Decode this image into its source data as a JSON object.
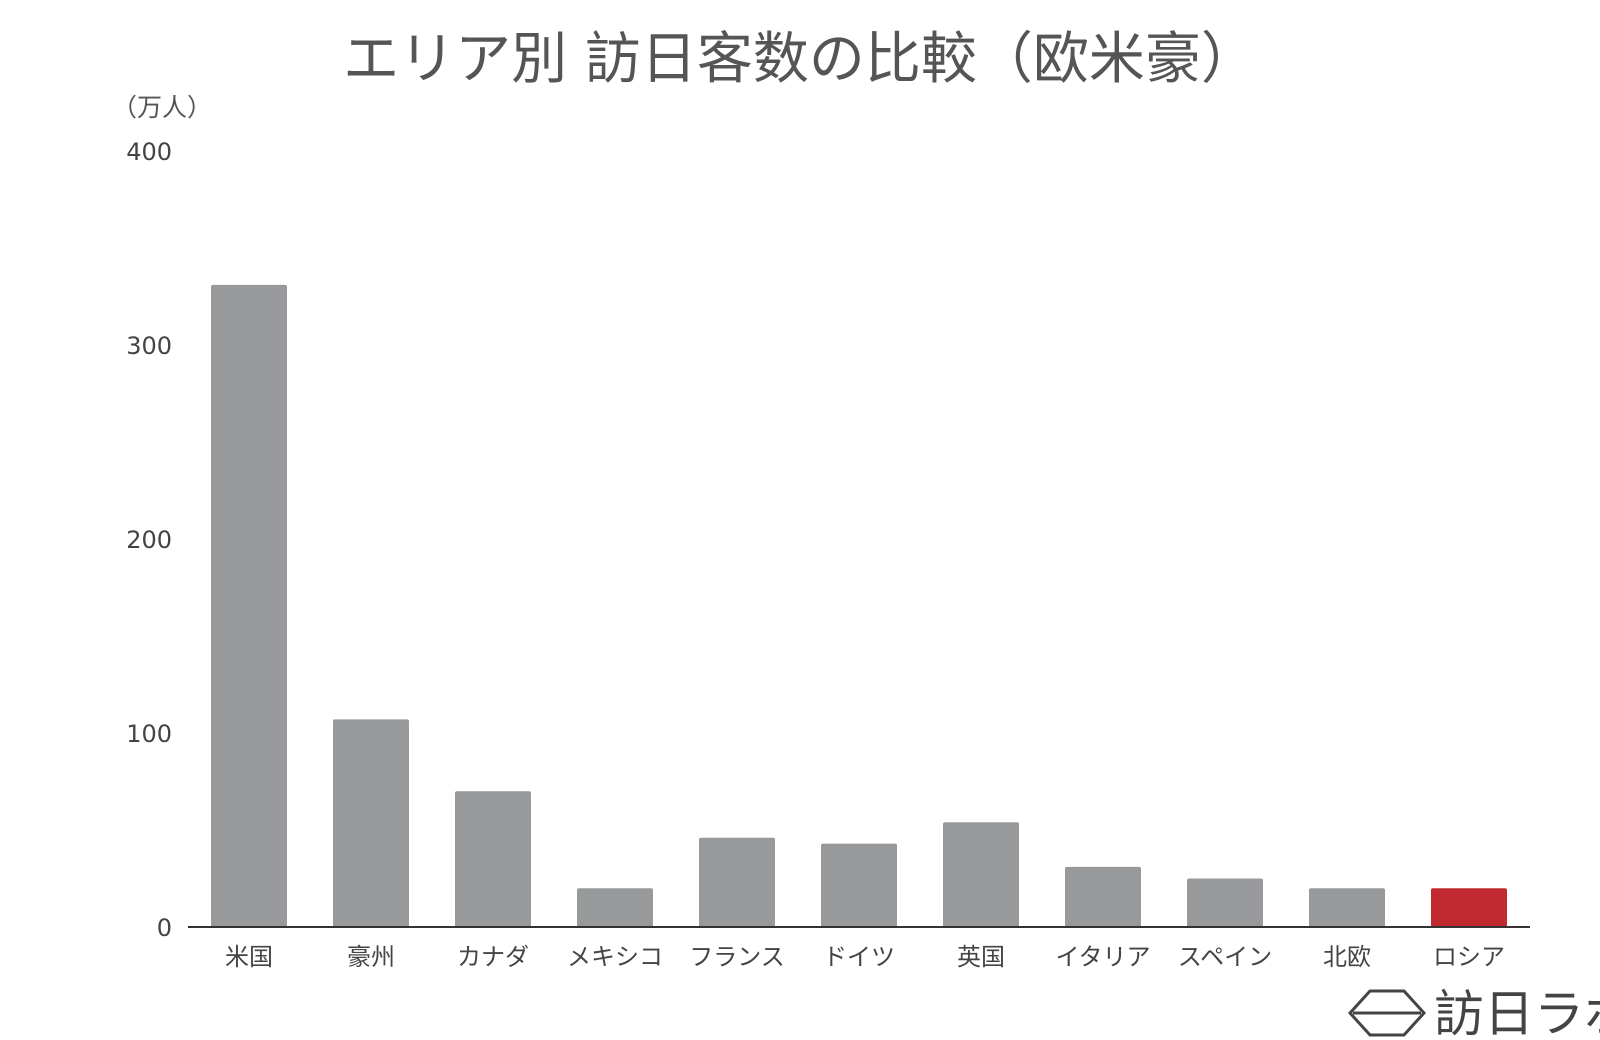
{
  "chart_data": {
    "type": "bar",
    "title": "エリア別 訪日客数の比較（欧米豪）",
    "unit_label": "（万人）",
    "categories": [
      "米国",
      "豪州",
      "カナダ",
      "メキシコ",
      "フランス",
      "ドイツ",
      "英国",
      "イタリア",
      "スペイン",
      "北欧",
      "ロシア"
    ],
    "values": [
      331,
      107,
      70,
      20,
      46,
      43,
      54,
      31,
      25,
      20,
      20
    ],
    "highlight_category": "ロシア",
    "ylim": [
      0,
      400
    ],
    "yticks": [
      0,
      100,
      200,
      300,
      400
    ],
    "colors": {
      "bar": "#97999a",
      "highlight": "#c0292f",
      "axis": "#333333"
    },
    "grid": false,
    "legend": "none"
  },
  "brand": {
    "name": "訪日ラボ",
    "icon": "hexagon-logo-icon"
  }
}
